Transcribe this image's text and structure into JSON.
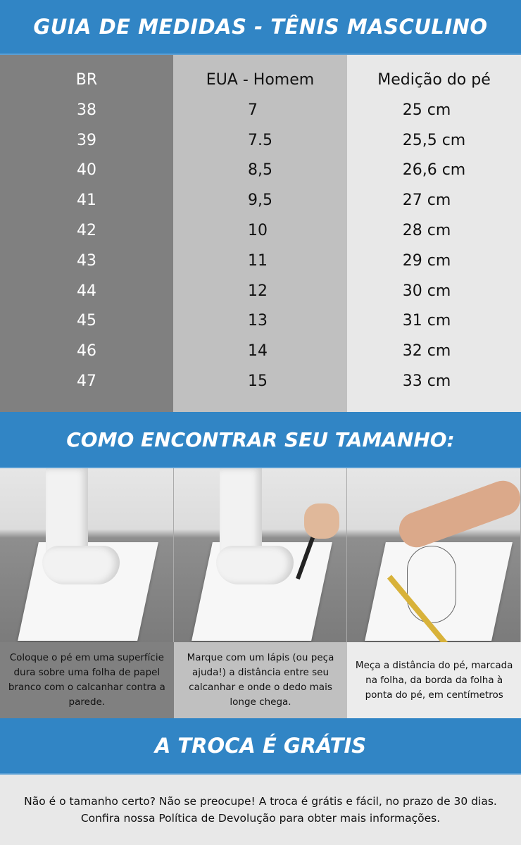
{
  "title": "GUIA DE MEDIDAS - TÊNIS MASCULINO",
  "colors": {
    "blue": "#3185c5",
    "col1": "#808080",
    "col2": "#c0c0c0",
    "col3": "#e8e8e8"
  },
  "table": {
    "headers": [
      "BR",
      "EUA - Homem",
      "Medição do pé"
    ],
    "br": [
      "38",
      "39",
      "40",
      "41",
      "42",
      "43",
      "44",
      "45",
      "46",
      "47"
    ],
    "us": [
      "7",
      "7.5",
      "8,5",
      "9,5",
      "10",
      "11",
      "12",
      "13",
      "14",
      "15"
    ],
    "cm": [
      "25 cm",
      "25,5 cm",
      "26,6 cm",
      "27 cm",
      "28 cm",
      "29 cm",
      "30 cm",
      "31 cm",
      "32 cm",
      "33 cm"
    ]
  },
  "how_title": "COMO ENCONTRAR SEU TAMANHO:",
  "steps": [
    "Coloque o pé em uma superfície dura sobre uma folha de papel branco com o calcanhar contra a parede.",
    "Marque com um lápis (ou peça ajuda!) a distância entre seu calcanhar e onde o dedo mais longe chega.",
    "Meça a distância do pé, marcada na folha, da borda da folha à ponta do pé, em centímetros"
  ],
  "troca_title": "A TROCA É GRÁTIS",
  "footer": "Não é o tamanho certo? Não se preocupe! A troca é grátis e fácil, no prazo de 30 dias. Confira nossa Política de Devolução para obter mais informações."
}
